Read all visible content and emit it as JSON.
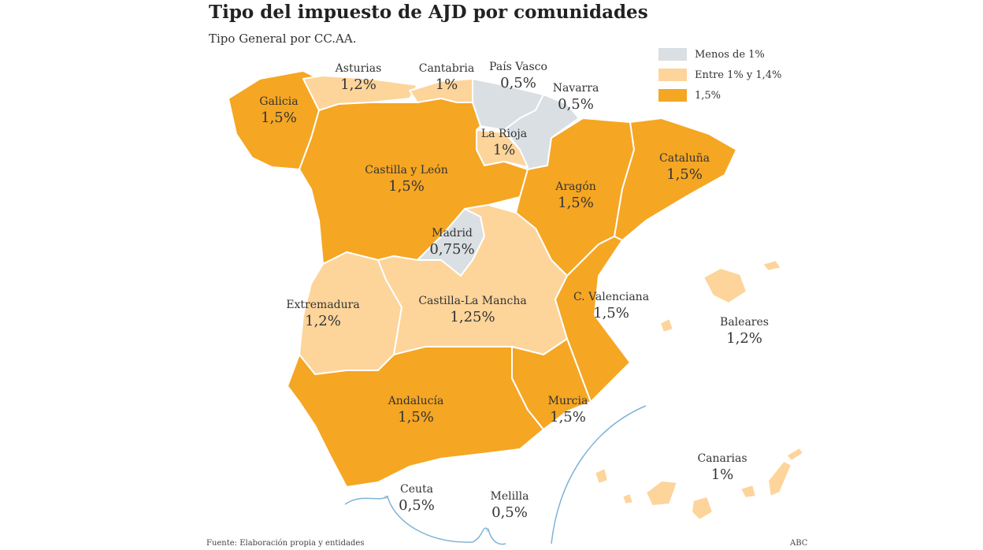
{
  "title": "Tipo del impuesto de AJD por comunidades",
  "subtitle": "Tipo General por CC.AA.",
  "colors": {
    "low": "#d9dfe3",
    "mid": "#fdd49a",
    "high": "#f5a623",
    "sea_line": "#7fb3d5"
  },
  "legend": [
    {
      "label": "Menos de 1%",
      "color": "#d9dfe3"
    },
    {
      "label": "Entre 1% y 1,4%",
      "color": "#fdd49a"
    },
    {
      "label": "1,5%",
      "color": "#f5a623"
    }
  ],
  "regions": [
    {
      "id": "galicia",
      "name": "Galicia",
      "value": "1,5%",
      "rate": 1.5
    },
    {
      "id": "asturias",
      "name": "Asturias",
      "value": "1,2%",
      "rate": 1.2
    },
    {
      "id": "cantabria",
      "name": "Cantabria",
      "value": "1%",
      "rate": 1.0
    },
    {
      "id": "pais-vasco",
      "name": "País Vasco",
      "value": "0,5%",
      "rate": 0.5
    },
    {
      "id": "navarra",
      "name": "Navarra",
      "value": "0,5%",
      "rate": 0.5
    },
    {
      "id": "la-rioja",
      "name": "La Rioja",
      "value": "1%",
      "rate": 1.0
    },
    {
      "id": "castilla-leon",
      "name": "Castilla y León",
      "value": "1,5%",
      "rate": 1.5
    },
    {
      "id": "aragon",
      "name": "Aragón",
      "value": "1,5%",
      "rate": 1.5
    },
    {
      "id": "cataluna",
      "name": "Cataluña",
      "value": "1,5%",
      "rate": 1.5
    },
    {
      "id": "madrid",
      "name": "Madrid",
      "value": "0,75%",
      "rate": 0.75
    },
    {
      "id": "extremadura",
      "name": "Extremadura",
      "value": "1,2%",
      "rate": 1.2
    },
    {
      "id": "castilla-la-mancha",
      "name": "Castilla-La Mancha",
      "value": "1,25%",
      "rate": 1.25
    },
    {
      "id": "valenciana",
      "name": "C. Valenciana",
      "value": "1,5%",
      "rate": 1.5
    },
    {
      "id": "baleares",
      "name": "Baleares",
      "value": "1,2%",
      "rate": 1.2
    },
    {
      "id": "andalucia",
      "name": "Andalucía",
      "value": "1,5%",
      "rate": 1.5
    },
    {
      "id": "murcia",
      "name": "Murcia",
      "value": "1,5%",
      "rate": 1.5
    },
    {
      "id": "canarias",
      "name": "Canarias",
      "value": "1%",
      "rate": 1.0
    },
    {
      "id": "ceuta",
      "name": "Ceuta",
      "value": "0,5%",
      "rate": 0.5
    },
    {
      "id": "melilla",
      "name": "Melilla",
      "value": "0,5%",
      "rate": 0.5
    }
  ],
  "source": "Fuente: Elaboración propia y entidades",
  "brand": "ABC"
}
